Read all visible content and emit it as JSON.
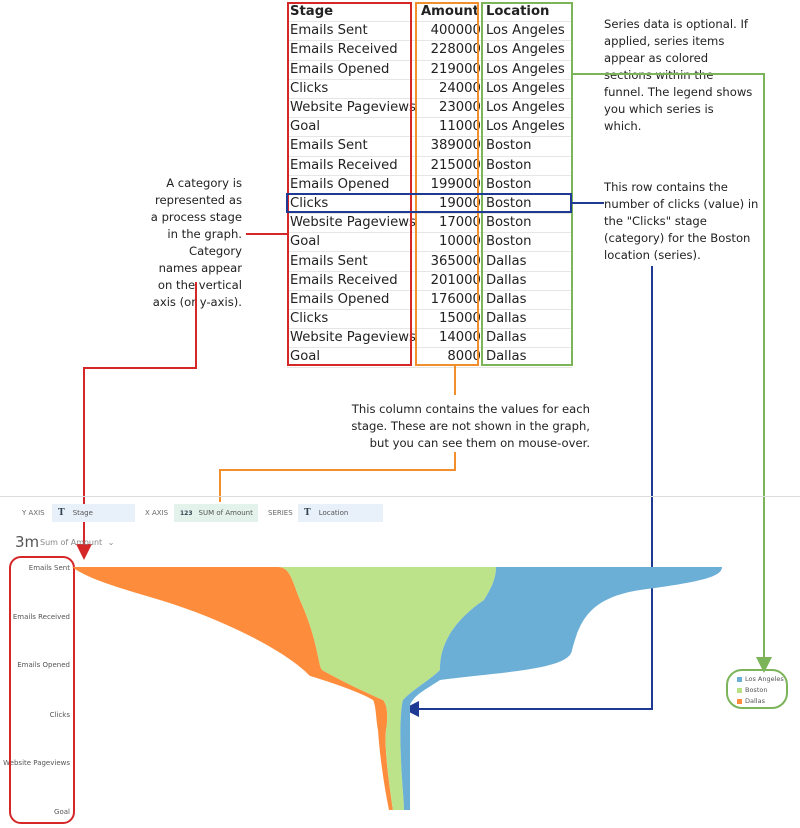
{
  "table": {
    "headers": [
      "Stage",
      "Amount",
      "Location"
    ],
    "rows": [
      [
        "Emails Sent",
        "400000",
        "Los Angeles"
      ],
      [
        "Emails Received",
        "228000",
        "Los Angeles"
      ],
      [
        "Emails Opened",
        "219000",
        "Los Angeles"
      ],
      [
        "Clicks",
        "24000",
        "Los Angeles"
      ],
      [
        "Website Pageviews",
        "23000",
        "Los Angeles"
      ],
      [
        "Goal",
        "11000",
        "Los Angeles"
      ],
      [
        "Emails Sent",
        "389000",
        "Boston"
      ],
      [
        "Emails Received",
        "215000",
        "Boston"
      ],
      [
        "Emails Opened",
        "199000",
        "Boston"
      ],
      [
        "Clicks",
        "19000",
        "Boston"
      ],
      [
        "Website Pageviews",
        "17000",
        "Boston"
      ],
      [
        "Goal",
        "10000",
        "Boston"
      ],
      [
        "Emails Sent",
        "365000",
        "Dallas"
      ],
      [
        "Emails Received",
        "201000",
        "Dallas"
      ],
      [
        "Emails Opened",
        "176000",
        "Dallas"
      ],
      [
        "Clicks",
        "15000",
        "Dallas"
      ],
      [
        "Website Pageviews",
        "14000",
        "Dallas"
      ],
      [
        "Goal",
        "8000",
        "Dallas"
      ]
    ]
  },
  "notes": {
    "series": "Series data is optional. If applied, series items appear as colored sections within the funnel. The legend shows you which series is which.",
    "row": "This row contains the number of clicks (value) in the \"Clicks\" stage (category) for the Boston location (series).",
    "category": "A category is represented as a process stage in the graph. Category names appear on the vertical axis (or y-axis).",
    "values": "This column contains the values for each stage. These are not shown in the graph, but you can see them on mouse-over."
  },
  "axis_bar": {
    "y_label": "Y AXIS",
    "y_value": "Stage",
    "y_type": "T",
    "x_label": "X AXIS",
    "x_value": "SUM of Amount",
    "x_type": "123",
    "series_label": "SERIES",
    "series_value": "Location",
    "series_type": "T"
  },
  "chart": {
    "total": "3m",
    "measure": "Sum of Amount",
    "stages": [
      "Emails Sent",
      "Emails Received",
      "Emails Opened",
      "Clicks",
      "Website Pageviews",
      "Goal"
    ]
  },
  "legend": [
    {
      "name": "Los Angeles",
      "color": "#6baed6"
    },
    {
      "name": "Boston",
      "color": "#b8e186"
    },
    {
      "name": "Dallas",
      "color": "#fd8d3c"
    }
  ],
  "colors": {
    "red": "#d62728",
    "orange": "#f28e2b",
    "green": "#7cb45a",
    "navy": "#1f3a93",
    "pill_t": "#e8f0fa",
    "pill_n": "#e3f2ea"
  }
}
